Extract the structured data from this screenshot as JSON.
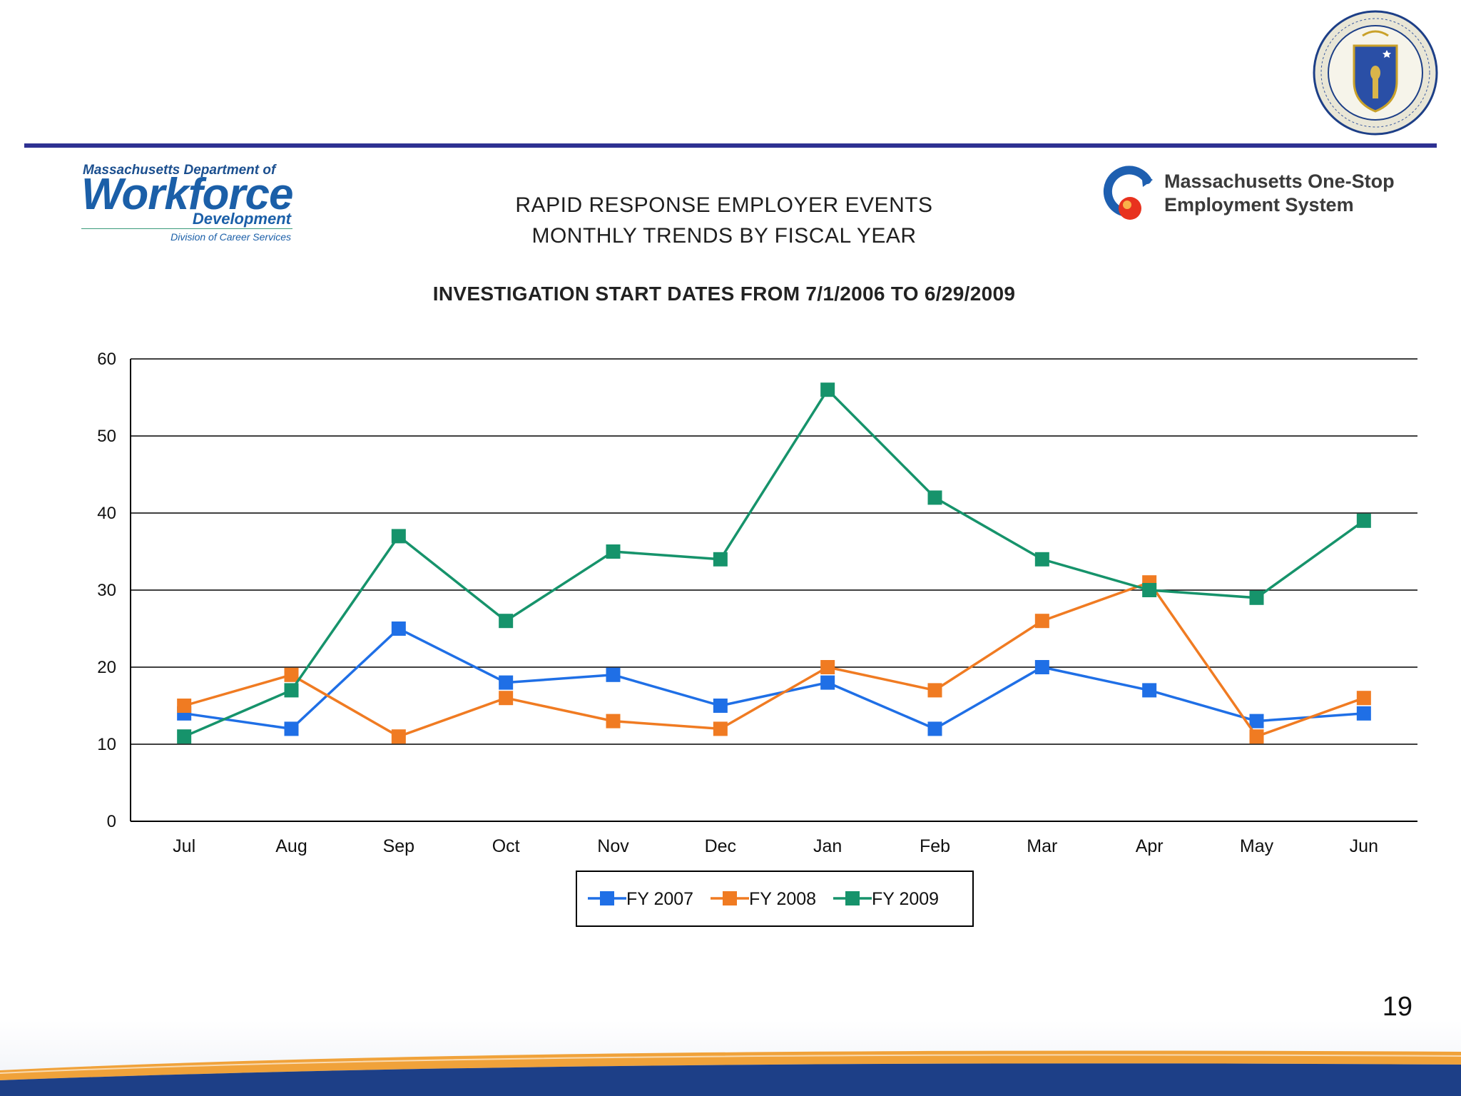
{
  "header": {
    "seal_icon": "massachusetts-seal-icon",
    "rule_color": "#2e3192"
  },
  "logo_left": {
    "line1": "Massachusetts Department of",
    "line2": "Workforce",
    "line3": "Development",
    "line4": "Division of Career Services"
  },
  "logo_right": {
    "line1": "Massachusetts One-Stop",
    "line2": "Employment System"
  },
  "title": {
    "line1": "RAPID RESPONSE EMPLOYER EVENTS",
    "line2": "MONTHLY TRENDS BY FISCAL YEAR"
  },
  "chart_data": {
    "type": "line",
    "title": "INVESTIGATION START DATES FROM 7/1/2006 TO 6/29/2009",
    "xlabel": "",
    "ylabel": "",
    "ylim": [
      0,
      60
    ],
    "yticks": [
      "0",
      "10",
      "20",
      "30",
      "40",
      "50",
      "60"
    ],
    "grid": true,
    "legend": "bottom",
    "categories": [
      "Jul",
      "Aug",
      "Sep",
      "Oct",
      "Nov",
      "Dec",
      "Jan",
      "Feb",
      "Mar",
      "Apr",
      "May",
      "Jun"
    ],
    "series": [
      {
        "name": "FY 2007",
        "color": "#1f6fe6",
        "values": [
          14,
          12,
          25,
          18,
          19,
          15,
          18,
          12,
          20,
          17,
          13,
          14
        ]
      },
      {
        "name": "FY 2008",
        "color": "#f07b22",
        "values": [
          15,
          19,
          11,
          16,
          13,
          12,
          20,
          17,
          26,
          31,
          11,
          16
        ]
      },
      {
        "name": "FY 2009",
        "color": "#16936b",
        "values": [
          11,
          17,
          37,
          26,
          35,
          34,
          56,
          42,
          34,
          30,
          29,
          39
        ]
      }
    ]
  },
  "page_number": "19",
  "footer": {
    "band_color": "#1d3f87",
    "accent_color": "#f0a23a"
  }
}
